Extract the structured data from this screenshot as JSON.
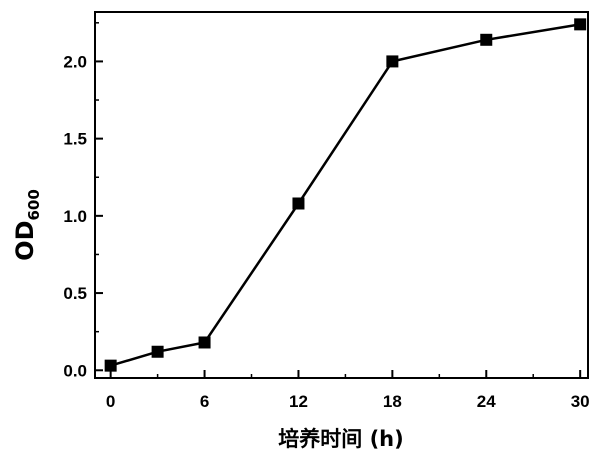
{
  "chart_data": {
    "type": "line",
    "title": "",
    "xlabel": "培养时间 (h)",
    "ylabel_main": "OD",
    "ylabel_sub": "600",
    "x": [
      0,
      3,
      6,
      12,
      18,
      24,
      30
    ],
    "series": [
      {
        "values": [
          0.03,
          0.12,
          0.18,
          1.08,
          2.0,
          2.14,
          2.24
        ],
        "marker": "square",
        "color": "#000000"
      }
    ],
    "xlim": [
      -1,
      30.5
    ],
    "ylim": [
      -0.05,
      2.32
    ],
    "xticks": [
      0,
      6,
      12,
      18,
      24,
      30
    ],
    "xtick_labels": [
      "0",
      "6",
      "12",
      "18",
      "24",
      "30"
    ],
    "yticks": [
      0.0,
      0.5,
      1.0,
      1.5,
      2.0
    ],
    "ytick_labels": [
      "0.0",
      "0.5",
      "1.0",
      "1.5",
      "2.0"
    ],
    "grid": false,
    "legend": "none"
  }
}
